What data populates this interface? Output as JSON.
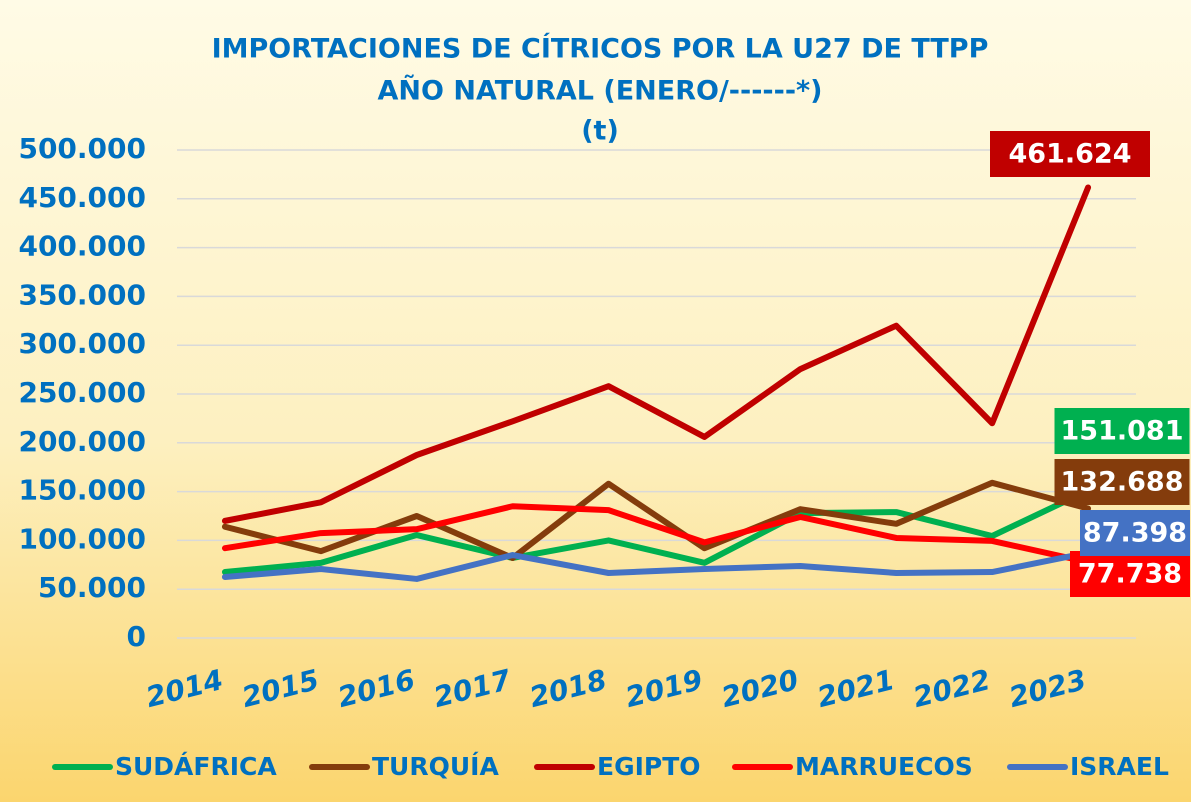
{
  "chart_data": {
    "type": "line",
    "title": [
      "IMPORTACIONES DE CÍTRICOS POR LA U27 DE TTPP",
      "AÑO NATURAL (ENERO/------*)",
      "(t)"
    ],
    "categories": [
      "2014",
      "2015",
      "2016",
      "2017",
      "2018",
      "2019",
      "2020",
      "2021",
      "2022",
      "2023"
    ],
    "series": [
      {
        "name": "SUDÁFRICA",
        "color": "#00b050",
        "values": [
          67600,
          77000,
          105500,
          82000,
          100000,
          77000,
          128000,
          129000,
          104500,
          151081
        ],
        "value_labels": [
          null,
          null,
          null,
          null,
          null,
          null,
          null,
          null,
          null,
          "151.081"
        ]
      },
      {
        "name": "TURQUÍA",
        "color": "#843c0c",
        "values": [
          114000,
          89000,
          125000,
          82000,
          158000,
          92000,
          132000,
          117000,
          159000,
          132688
        ],
        "value_labels": [
          null,
          null,
          null,
          null,
          null,
          null,
          null,
          null,
          null,
          "132.688"
        ]
      },
      {
        "name": "EGIPTO",
        "color": "#c00000",
        "values": [
          120000,
          139000,
          187500,
          222000,
          258000,
          206000,
          275500,
          320000,
          220000,
          461624
        ],
        "value_labels": [
          null,
          null,
          null,
          null,
          null,
          null,
          null,
          null,
          null,
          "461.624"
        ]
      },
      {
        "name": "MARRUECOS",
        "color": "#ff0000",
        "values": [
          92000,
          107500,
          111500,
          135000,
          131000,
          98000,
          124000,
          102500,
          99500,
          77738
        ],
        "value_labels": [
          null,
          null,
          null,
          null,
          null,
          null,
          null,
          null,
          null,
          "77.738"
        ]
      },
      {
        "name": "ISRAEL",
        "color": "#4472c4",
        "values": [
          62500,
          70700,
          60500,
          85000,
          66600,
          70700,
          73800,
          66600,
          67600,
          87398
        ],
        "value_labels": [
          null,
          null,
          null,
          null,
          null,
          null,
          null,
          null,
          null,
          "87.398"
        ]
      }
    ],
    "ylim": [
      0,
      500000
    ],
    "yticks": [
      0,
      {
        "value": 50000,
        "label": "50.000"
      },
      {
        "value": 100000,
        "label": "100.000"
      },
      {
        "value": 150000,
        "label": "150.000"
      },
      {
        "value": 200000,
        "label": "200.000"
      },
      {
        "value": 250000,
        "label": "250.000"
      },
      {
        "value": 300000,
        "label": "300.000"
      },
      {
        "value": 350000,
        "label": "350.000"
      },
      {
        "value": 400000,
        "label": "400.000"
      },
      {
        "value": 450000,
        "label": "450.000"
      },
      {
        "value": 500000,
        "label": "500.000"
      }
    ],
    "grid": true,
    "legend": "bottom"
  }
}
